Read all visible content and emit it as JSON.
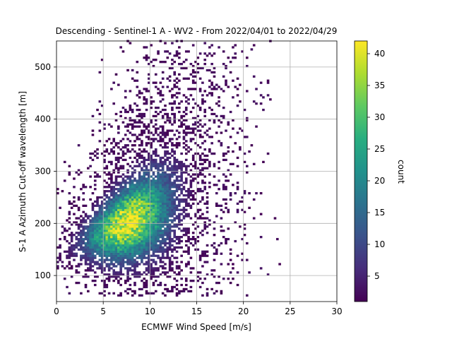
{
  "chart_data": {
    "type": "heatmap",
    "title": "Descending - Sentinel-1 A - WV2 - From 2022/04/01 to 2022/04/29",
    "xlabel": "ECMWF Wind Speed [m/s]",
    "ylabel": "S-1 A Azimuth Cut-off wavelength [m]",
    "xlim": [
      0,
      30
    ],
    "ylim": [
      50,
      550
    ],
    "xticks": [
      "0",
      "5",
      "10",
      "15",
      "20",
      "25",
      "30"
    ],
    "yticks": [
      "100",
      "200",
      "300",
      "400",
      "500"
    ],
    "grid": true,
    "colorbar": {
      "label": "count",
      "range": [
        1,
        42
      ],
      "ticks": [
        "5",
        "10",
        "15",
        "20",
        "25",
        "30",
        "35",
        "40"
      ],
      "colormap": "viridis"
    },
    "density_model": {
      "peak_count": 42,
      "peak_wind_speed": 7.5,
      "peak_cutoff": 200,
      "trend_intercept": 140,
      "trend_slope_per_ms": 8,
      "bin_width_ms": 0.25,
      "bin_height_m": 4
    }
  }
}
